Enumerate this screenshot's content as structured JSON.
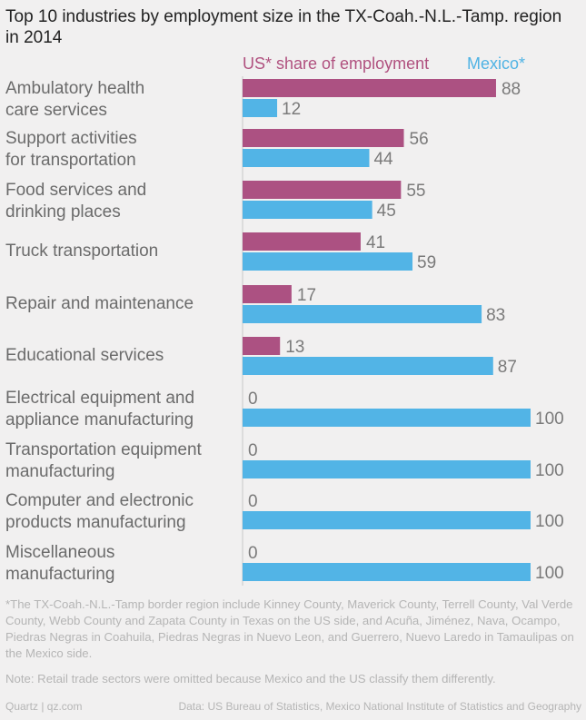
{
  "title": "Top 10 industries by employment size in the TX-Coah.-N.L.-Tamp. region in 2014",
  "legend": {
    "us": "US* share of employment",
    "mexico": "Mexico*"
  },
  "colors": {
    "us": "#ac5182",
    "mexico": "#52b4e6",
    "baseline": "#c8c8c8"
  },
  "chart_data": {
    "type": "bar",
    "orientation": "horizontal",
    "title": "Top 10 industries by employment size in the TX-Coah.-N.L.-Tamp. region in 2014",
    "xlim": [
      0,
      100
    ],
    "categories": [
      [
        "Ambulatory health",
        "care services"
      ],
      [
        "Support activities",
        "for transportation"
      ],
      [
        "Food services and",
        "drinking places"
      ],
      [
        "Truck transportation"
      ],
      [
        "Repair and maintenance"
      ],
      [
        "Educational services"
      ],
      [
        "Electrical equipment and",
        "appliance manufacturing"
      ],
      [
        "Transportation equipment",
        "manufacturing"
      ],
      [
        "Computer and electronic",
        "products manufacturing"
      ],
      [
        "Miscellaneous",
        "manufacturing"
      ]
    ],
    "series": [
      {
        "name": "US* share of employment",
        "values": [
          88,
          56,
          55,
          41,
          17,
          13,
          0,
          0,
          0,
          0
        ]
      },
      {
        "name": "Mexico*",
        "values": [
          12,
          44,
          45,
          59,
          83,
          87,
          100,
          100,
          100,
          100
        ]
      }
    ]
  },
  "notes": {
    "footnote": "*The TX-Coah.-N.L.-Tamp border region include Kinney County, Maverick County, Terrell County, Val Verde County, Webb County and Zapata County in Texas on the US side, and Acuña, Jiménez, Nava, Ocampo, Piedras Negras in Coahuila, Piedras Negras in Nuevo Leon, and Guerrero, Nuevo Laredo in Tamaulipas on the Mexico side.",
    "retail": "Note: Retail trade sectors were omitted because Mexico and the US classify them differently."
  },
  "footer": {
    "source_left": "Quartz | qz.com",
    "source_right": "Data: US Bureau of Statistics, Mexico National Institute of Statistics and Geography"
  }
}
